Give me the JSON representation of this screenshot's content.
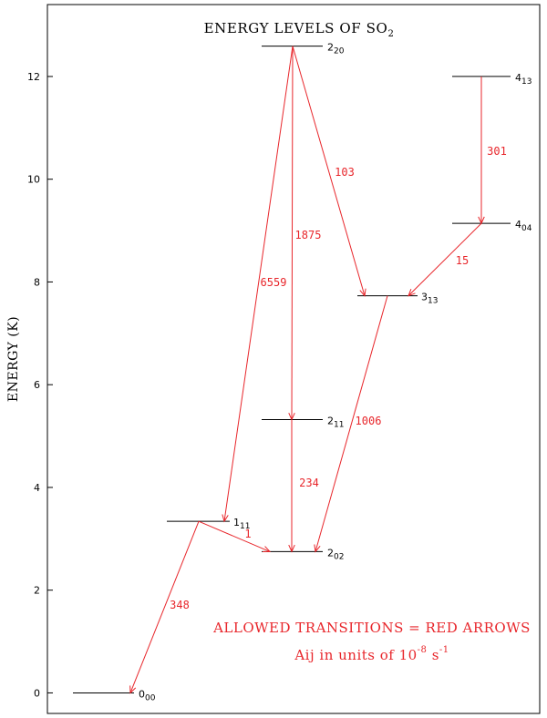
{
  "title": {
    "main": "ENERGY LEVELS OF SO",
    "sub": "2"
  },
  "axis": {
    "ylabel": "ENERGY (K)",
    "ylim": [
      -0.4,
      13.4
    ],
    "yticks": [
      0,
      2,
      4,
      6,
      8,
      10,
      12
    ],
    "yticks_text": [
      "0",
      "2",
      "4",
      "6",
      "8",
      "10",
      "12"
    ]
  },
  "levels": [
    {
      "id": "000",
      "main": "0",
      "sub": "00",
      "energy": 0.0
    },
    {
      "id": "111",
      "main": "1",
      "sub": "11",
      "energy": 3.34
    },
    {
      "id": "202",
      "main": "2",
      "sub": "02",
      "energy": 2.75
    },
    {
      "id": "211",
      "main": "2",
      "sub": "11",
      "energy": 5.32
    },
    {
      "id": "220",
      "main": "2",
      "sub": "20",
      "energy": 12.59
    },
    {
      "id": "313",
      "main": "3",
      "sub": "13",
      "energy": 7.73
    },
    {
      "id": "404",
      "main": "4",
      "sub": "04",
      "energy": 9.14
    },
    {
      "id": "413",
      "main": "4",
      "sub": "13",
      "energy": 12.0
    }
  ],
  "transitions": [
    {
      "from": "111",
      "to": "000",
      "rate": "348"
    },
    {
      "from": "111",
      "to": "202",
      "rate": "1"
    },
    {
      "from": "211",
      "to": "202",
      "rate": "234"
    },
    {
      "from": "313",
      "to": "202",
      "rate": "1006"
    },
    {
      "from": "220",
      "to": "111",
      "rate": "6559"
    },
    {
      "from": "220",
      "to": "211",
      "rate": "1875"
    },
    {
      "from": "220",
      "to": "313",
      "rate": "103"
    },
    {
      "from": "404",
      "to": "313",
      "rate": "15"
    },
    {
      "from": "413",
      "to": "404",
      "rate": "301"
    }
  ],
  "notes": {
    "line1": "ALLOWED TRANSITIONS = RED ARROWS",
    "line2_prefix": "Aij in units of 10",
    "line2_exp1": "-8",
    "line2_mid": " s",
    "line2_exp2": "-1"
  }
}
